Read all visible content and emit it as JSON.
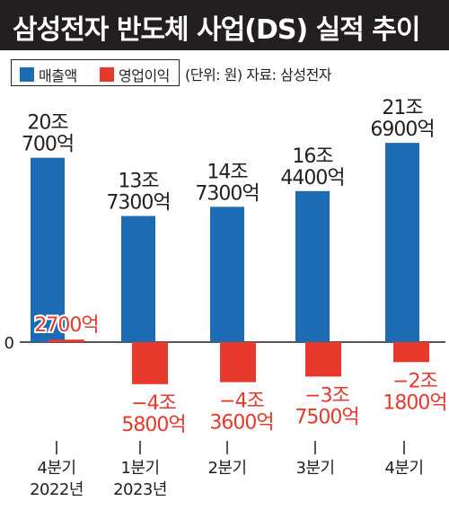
{
  "title": "삼성전자 반도체 사업(DS) 실적 추이",
  "note": "(단위: 원) 자료: 삼성전자",
  "colors": {
    "title_bg": "#231f20",
    "revenue": "#1d6cb3",
    "profit": "#e8392d",
    "profit_label": "#e8392d",
    "axis": "#231f20"
  },
  "chart_data": {
    "type": "bar",
    "title": "삼성전자 반도체 사업(DS) 실적 추이",
    "unit": "원",
    "categories": [
      [
        "4분기",
        "2022년"
      ],
      [
        "1분기",
        "2023년"
      ],
      [
        "2분기"
      ],
      [
        "3분기"
      ],
      [
        "4분기"
      ]
    ],
    "series": [
      {
        "name": "매출액",
        "values": [
          20.07,
          13.73,
          14.73,
          16.44,
          21.69
        ],
        "labels": [
          [
            "20조",
            "700억"
          ],
          [
            "13조",
            "7300억"
          ],
          [
            "14조",
            "7300억"
          ],
          [
            "16조",
            "4400억"
          ],
          [
            "21조",
            "6900억"
          ]
        ]
      },
      {
        "name": "영업이익",
        "values": [
          0.27,
          -4.58,
          -4.36,
          -3.75,
          -2.18
        ],
        "labels": [
          [
            "2700억"
          ],
          [
            "−4조",
            "5800억"
          ],
          [
            "−4조",
            "3600억"
          ],
          [
            "−3조",
            "7500억"
          ],
          [
            "−2조",
            "1800억"
          ]
        ]
      }
    ],
    "yaxis_tick_labels": [
      "0"
    ],
    "legend_position": "top-left"
  }
}
